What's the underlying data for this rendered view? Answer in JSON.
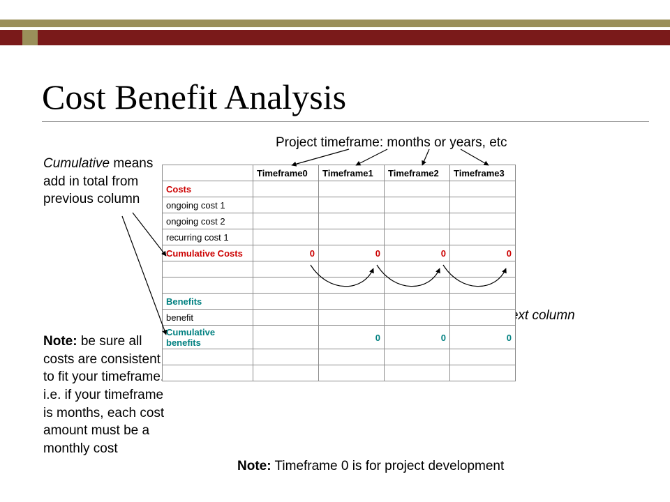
{
  "title": "Cost Benefit Analysis",
  "annotations": {
    "projectTimeframe": "Project timeframe: months or years, etc",
    "cumulative_prefix_italic": "Cumulative",
    "cumulative_rest": " means add in total from previous column",
    "includePrevious": "Include previous column total into next column",
    "noteConsistent_prefix": "Note:",
    "noteConsistent_rest": " be sure all costs are consistent to fit your timeframe. i.e. if your timeframe is months, each cost amount must be a monthly cost",
    "noteTimeframe0_prefix": "Note:",
    "noteTimeframe0_rest": " Timeframe 0 is for project development"
  },
  "table": {
    "headers": [
      "",
      "Timeframe0",
      "Timeframe1",
      "Timeframe2",
      "Timeframe3"
    ],
    "rows": [
      {
        "label": "Costs",
        "class": "red",
        "cells": [
          "",
          "",
          "",
          ""
        ]
      },
      {
        "label": "ongoing cost 1",
        "class": "",
        "cells": [
          "",
          "",
          "",
          ""
        ]
      },
      {
        "label": "ongoing cost 2",
        "class": "",
        "cells": [
          "",
          "",
          "",
          ""
        ]
      },
      {
        "label": "recurring cost 1",
        "class": "",
        "cells": [
          "",
          "",
          "",
          ""
        ]
      },
      {
        "label": "Cumulative Costs",
        "class": "red",
        "cells": [
          "0",
          "0",
          "0",
          "0"
        ],
        "num": true
      },
      {
        "label": "",
        "class": "",
        "cells": [
          "",
          "",
          "",
          ""
        ]
      },
      {
        "label": "",
        "class": "",
        "cells": [
          "",
          "",
          "",
          ""
        ]
      },
      {
        "label": "Benefits",
        "class": "teal",
        "cells": [
          "",
          "",
          "",
          ""
        ]
      },
      {
        "label": "benefit",
        "class": "",
        "cells": [
          "",
          "",
          "",
          ""
        ]
      },
      {
        "label": "Cumulative benefits",
        "class": "teal",
        "cells": [
          "",
          "0",
          "0",
          "0"
        ],
        "num": true
      },
      {
        "label": "",
        "class": "",
        "cells": [
          "",
          "",
          "",
          ""
        ]
      },
      {
        "label": "",
        "class": "",
        "cells": [
          "",
          "",
          "",
          ""
        ]
      }
    ]
  },
  "colors": {
    "olive": "#9a8f5a",
    "maroon": "#7a1a1a",
    "red": "#cc0000",
    "teal": "#008080",
    "grid": "#8a8a8a"
  }
}
